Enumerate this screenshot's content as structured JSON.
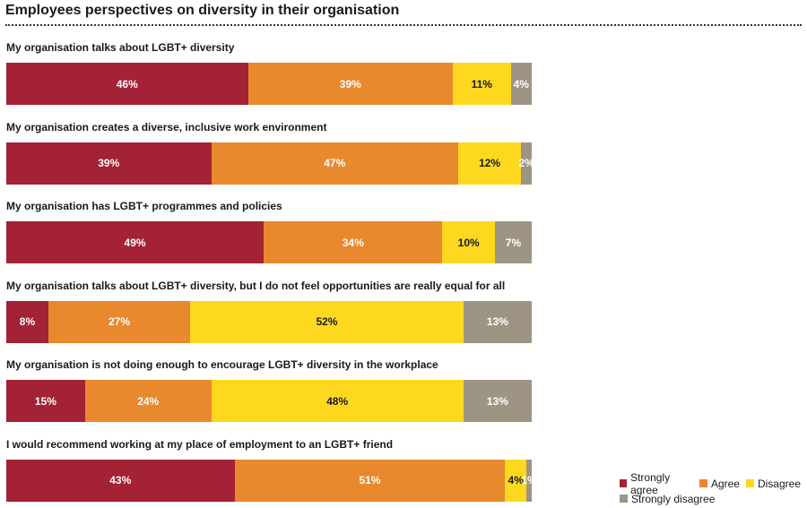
{
  "chart_data": {
    "type": "bar",
    "orientation": "horizontal",
    "stacked": true,
    "title": "Employees perspectives on diversity in their organisation",
    "categories": [
      "My organisation talks about LGBT+ diversity",
      "My organisation creates a diverse, inclusive work environment",
      "My organisation has LGBT+ programmes and policies",
      "My organisation talks about LGBT+ diversity, but I do not feel opportunities are really equal for all",
      "My organisation is not doing enough to encourage LGBT+ diversity in the workplace",
      "I would recommend working at my place of employment to an LGBT+ friend"
    ],
    "series": [
      {
        "name": "Strongly agree",
        "color": "#a32235",
        "label_color": "#ffffff",
        "values": [
          46,
          39,
          49,
          8,
          15,
          43
        ]
      },
      {
        "name": "Agree",
        "color": "#e8892e",
        "label_color": "#ffffff",
        "values": [
          39,
          47,
          34,
          27,
          24,
          51
        ]
      },
      {
        "name": "Disagree",
        "color": "#fdd81f",
        "label_color": "#1a1a1a",
        "values": [
          11,
          12,
          10,
          52,
          48,
          4
        ]
      },
      {
        "name": "Strongly disagree",
        "color": "#9e9484",
        "label_color": "#ffffff",
        "values": [
          4,
          2,
          7,
          13,
          13,
          1
        ]
      }
    ],
    "unit": "%",
    "legend_position": "bottom-right",
    "grid": false
  }
}
